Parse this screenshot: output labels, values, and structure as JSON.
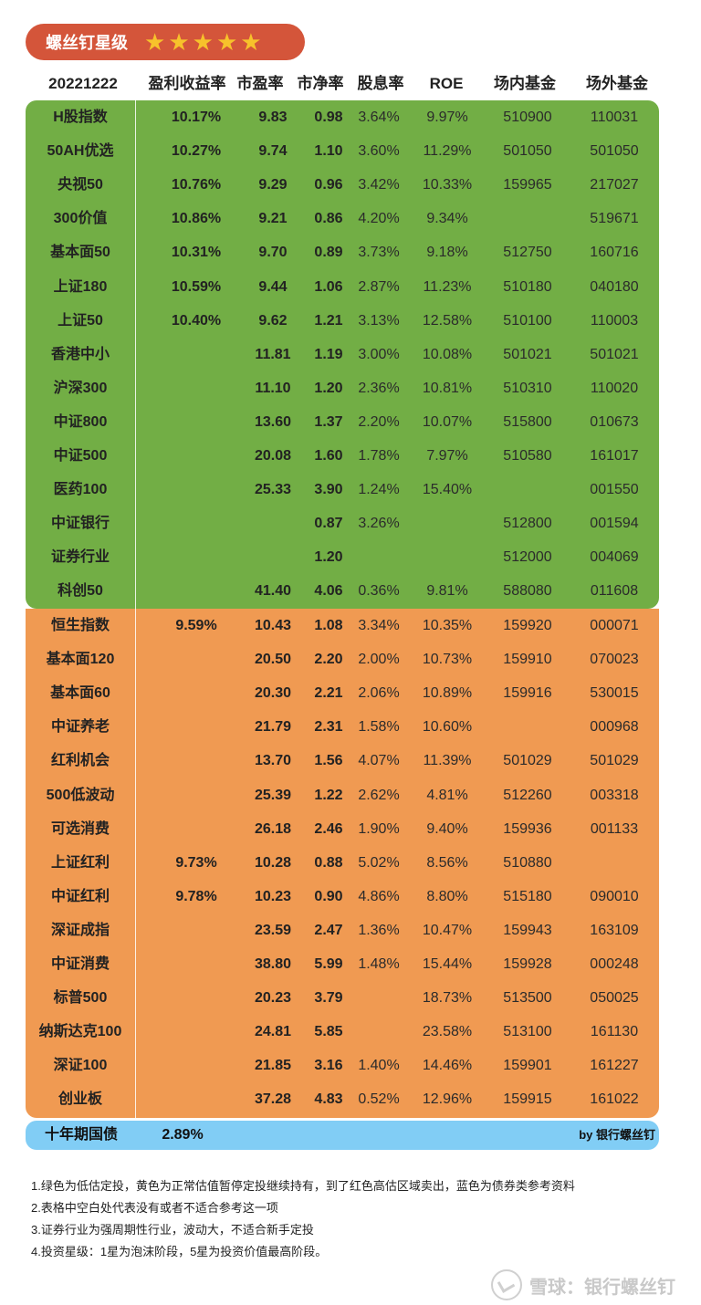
{
  "header_badge": {
    "title": "螺丝钉星级",
    "stars": 5
  },
  "columns": [
    "20221222",
    "盈利收益率",
    "市盈率",
    "市净率",
    "股息率",
    "ROE",
    "场内基金",
    "场外基金"
  ],
  "green_rows": [
    [
      "H股指数",
      "10.17%",
      "9.83",
      "0.98",
      "3.64%",
      "9.97%",
      "510900",
      "110031"
    ],
    [
      "50AH优选",
      "10.27%",
      "9.74",
      "1.10",
      "3.60%",
      "11.29%",
      "501050",
      "501050"
    ],
    [
      "央视50",
      "10.76%",
      "9.29",
      "0.96",
      "3.42%",
      "10.33%",
      "159965",
      "217027"
    ],
    [
      "300价值",
      "10.86%",
      "9.21",
      "0.86",
      "4.20%",
      "9.34%",
      "",
      "519671"
    ],
    [
      "基本面50",
      "10.31%",
      "9.70",
      "0.89",
      "3.73%",
      "9.18%",
      "512750",
      "160716"
    ],
    [
      "上证180",
      "10.59%",
      "9.44",
      "1.06",
      "2.87%",
      "11.23%",
      "510180",
      "040180"
    ],
    [
      "上证50",
      "10.40%",
      "9.62",
      "1.21",
      "3.13%",
      "12.58%",
      "510100",
      "110003"
    ],
    [
      "香港中小",
      "",
      "11.81",
      "1.19",
      "3.00%",
      "10.08%",
      "501021",
      "501021"
    ],
    [
      "沪深300",
      "",
      "11.10",
      "1.20",
      "2.36%",
      "10.81%",
      "510310",
      "110020"
    ],
    [
      "中证800",
      "",
      "13.60",
      "1.37",
      "2.20%",
      "10.07%",
      "515800",
      "010673"
    ],
    [
      "中证500",
      "",
      "20.08",
      "1.60",
      "1.78%",
      "7.97%",
      "510580",
      "161017"
    ],
    [
      "医药100",
      "",
      "25.33",
      "3.90",
      "1.24%",
      "15.40%",
      "",
      "001550"
    ],
    [
      "中证银行",
      "",
      "",
      "0.87",
      "3.26%",
      "",
      "512800",
      "001594"
    ],
    [
      "证券行业",
      "",
      "",
      "1.20",
      "",
      "",
      "512000",
      "004069"
    ],
    [
      "科创50",
      "",
      "41.40",
      "4.06",
      "0.36%",
      "9.81%",
      "588080",
      "011608"
    ]
  ],
  "orange_rows": [
    [
      "恒生指数",
      "9.59%",
      "10.43",
      "1.08",
      "3.34%",
      "10.35%",
      "159920",
      "000071"
    ],
    [
      "基本面120",
      "",
      "20.50",
      "2.20",
      "2.00%",
      "10.73%",
      "159910",
      "070023"
    ],
    [
      "基本面60",
      "",
      "20.30",
      "2.21",
      "2.06%",
      "10.89%",
      "159916",
      "530015"
    ],
    [
      "中证养老",
      "",
      "21.79",
      "2.31",
      "1.58%",
      "10.60%",
      "",
      "000968"
    ],
    [
      "红利机会",
      "",
      "13.70",
      "1.56",
      "4.07%",
      "11.39%",
      "501029",
      "501029"
    ],
    [
      "500低波动",
      "",
      "25.39",
      "1.22",
      "2.62%",
      "4.81%",
      "512260",
      "003318"
    ],
    [
      "可选消费",
      "",
      "26.18",
      "2.46",
      "1.90%",
      "9.40%",
      "159936",
      "001133"
    ],
    [
      "上证红利",
      "9.73%",
      "10.28",
      "0.88",
      "5.02%",
      "8.56%",
      "510880",
      ""
    ],
    [
      "中证红利",
      "9.78%",
      "10.23",
      "0.90",
      "4.86%",
      "8.80%",
      "515180",
      "090010"
    ],
    [
      "深证成指",
      "",
      "23.59",
      "2.47",
      "1.36%",
      "10.47%",
      "159943",
      "163109"
    ],
    [
      "中证消费",
      "",
      "38.80",
      "5.99",
      "1.48%",
      "15.44%",
      "159928",
      "000248"
    ],
    [
      "标普500",
      "",
      "20.23",
      "3.79",
      "",
      "18.73%",
      "513500",
      "050025"
    ],
    [
      "纳斯达克100",
      "",
      "24.81",
      "5.85",
      "",
      "23.58%",
      "513100",
      "161130"
    ],
    [
      "深证100",
      "",
      "21.85",
      "3.16",
      "1.40%",
      "14.46%",
      "159901",
      "161227"
    ],
    [
      "创业板",
      "",
      "37.28",
      "4.83",
      "0.52%",
      "12.96%",
      "159915",
      "161022"
    ]
  ],
  "bond_row": {
    "name": "十年期国债",
    "yield": "2.89%",
    "by": "by 银行螺丝钉"
  },
  "notes": [
    "1.绿色为低估定投，黄色为正常估值暂停定投继续持有，到了红色高估区域卖出，蓝色为债券类参考资料",
    "2.表格中空白处代表没有或者不适合参考这一项",
    "3.证券行业为强周期性行业，波动大，不适合新手定投",
    "4.投资星级：1星为泡沫阶段，5星为投资价值最高阶段。"
  ],
  "watermark": "雪球：银行螺丝钉",
  "colors": {
    "green": "#72ae45",
    "orange": "#f09a52",
    "blue": "#81cdf5",
    "badge": "#d4553a",
    "star": "#f7c22b"
  }
}
